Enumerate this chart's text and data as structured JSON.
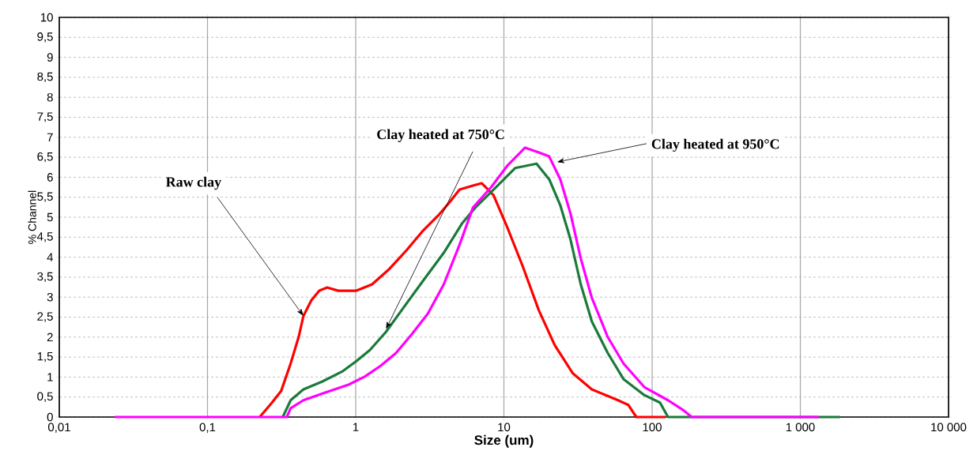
{
  "chart_data": {
    "type": "line",
    "xlabel": "Size (um)",
    "ylabel": "% Channel",
    "log": "x",
    "grid": true,
    "line_style": "solid",
    "marker": "none",
    "xlim": [
      0.01,
      10000
    ],
    "ylim": [
      0,
      10
    ],
    "xticks": [
      {
        "value": 0.01,
        "label": "0,01"
      },
      {
        "value": 0.1,
        "label": "0,1"
      },
      1,
      10,
      100,
      {
        "value": 1000,
        "label": "1 000"
      },
      {
        "value": 10000,
        "label": "10 000"
      }
    ],
    "yticks": [
      0,
      {
        "value": 0.5,
        "label": "0,5"
      },
      1,
      {
        "value": 1.5,
        "label": "1,5"
      },
      2,
      {
        "value": 2.5,
        "label": "2,5"
      },
      3,
      {
        "value": 3.5,
        "label": "3,5"
      },
      4,
      {
        "value": 4.5,
        "label": "4,5"
      },
      5,
      {
        "value": 5.5,
        "label": "5,5"
      },
      6,
      {
        "value": 6.5,
        "label": "6,5"
      },
      7,
      {
        "value": 7.5,
        "label": "7,5"
      },
      8,
      {
        "value": 8.5,
        "label": "8,5"
      },
      9,
      {
        "value": 9.5,
        "label": "9,5"
      },
      10
    ],
    "series": [
      {
        "color": "#ff0000",
        "x": [
          0.225,
          0.271,
          0.314,
          0.364,
          0.412,
          0.444,
          0.502,
          0.568,
          0.642,
          0.763,
          1.01,
          1.29,
          1.66,
          2.2,
          2.81,
          3.6,
          4.27,
          5.02,
          6.18,
          7.08,
          8.51,
          10.5,
          13.4,
          17.2,
          22.0,
          29.2,
          39.2,
          58.9,
          69.2,
          78.2,
          123
        ],
        "values": [
          0,
          0.35,
          0.65,
          1.34,
          2.0,
          2.53,
          2.92,
          3.16,
          3.24,
          3.16,
          3.16,
          3.32,
          3.68,
          4.17,
          4.64,
          5.04,
          5.36,
          5.69,
          5.79,
          5.85,
          5.55,
          4.76,
          3.77,
          2.67,
          1.8,
          1.09,
          0.69,
          0.42,
          0.3,
          0,
          0
        ]
      },
      {
        "color": "#1a7a3a",
        "x": [
          0.322,
          0.364,
          0.444,
          0.596,
          0.82,
          1.01,
          1.25,
          1.6,
          2.04,
          2.81,
          3.93,
          5.21,
          6.41,
          8.2,
          11.9,
          16.6,
          20.2,
          24.0,
          28.1,
          33.0,
          39.2,
          50.2,
          64.1,
          88.5,
          113,
          128,
          1850
        ],
        "values": [
          0,
          0.42,
          0.69,
          0.89,
          1.15,
          1.4,
          1.68,
          2.13,
          2.67,
          3.38,
          4.11,
          4.84,
          5.24,
          5.63,
          6.23,
          6.34,
          5.95,
          5.3,
          4.45,
          3.32,
          2.39,
          1.6,
          0.95,
          0.55,
          0.36,
          0,
          0
        ]
      },
      {
        "color": "#ff00ff",
        "x": [
          0.0237,
          0.343,
          0.364,
          0.444,
          0.618,
          0.895,
          1.15,
          1.47,
          1.87,
          2.4,
          3.07,
          3.93,
          5.02,
          6.18,
          8.2,
          10.5,
          13.9,
          17.2,
          20.2,
          24.0,
          28.1,
          33.0,
          39.2,
          50.2,
          64.1,
          88.5,
          128,
          164,
          185,
          1330
        ],
        "values": [
          0,
          0,
          0.22,
          0.42,
          0.61,
          0.81,
          1.01,
          1.28,
          1.6,
          2.08,
          2.59,
          3.32,
          4.31,
          5.24,
          5.75,
          6.28,
          6.74,
          6.62,
          6.52,
          5.95,
          5.1,
          3.97,
          2.98,
          2.0,
          1.34,
          0.75,
          0.42,
          0.16,
          0,
          0
        ]
      }
    ],
    "annotations": [
      {
        "text": "Raw clay",
        "x": 0.444,
        "y": 2.53
      },
      {
        "text": "Clay heated at 750°C",
        "x": 1.6,
        "y": 2.2
      },
      {
        "text": "Clay heated at 950°C",
        "x": 22.8,
        "y": 6.38
      }
    ]
  }
}
